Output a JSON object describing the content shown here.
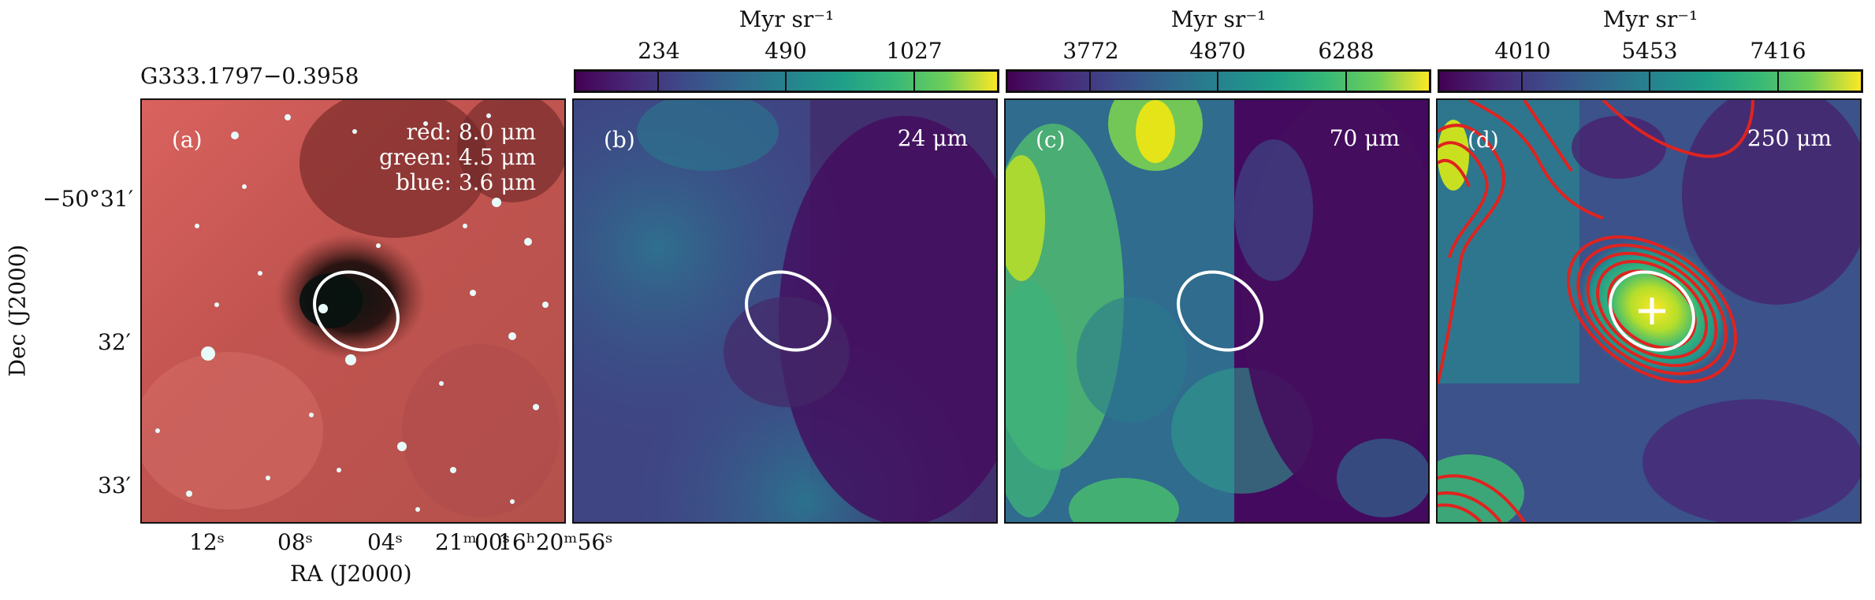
{
  "source_name": "G333.1797−0.3958",
  "colorbar_unit": "Myr sr⁻¹",
  "panels": [
    {
      "id": "a",
      "label": "(a)",
      "legend": [
        "red: 8.0 μm",
        "green: 4.5 μm",
        "blue: 3.6 μm"
      ]
    },
    {
      "id": "b",
      "label": "(b)",
      "band": "24 μm",
      "colorbar_ticks": [
        "234",
        "490",
        "1027"
      ]
    },
    {
      "id": "c",
      "label": "(c)",
      "band": "70 μm",
      "colorbar_ticks": [
        "3772",
        "4870",
        "6288"
      ]
    },
    {
      "id": "d",
      "label": "(d)",
      "band": "250 μm",
      "colorbar_ticks": [
        "4010",
        "5453",
        "7416"
      ]
    }
  ],
  "y_axis": {
    "label": "Dec (J2000)",
    "ticks": [
      "−50°31′",
      "32′",
      "33′"
    ]
  },
  "x_axis": {
    "label": "RA (J2000)",
    "ticks": [
      "12ˢ",
      "08ˢ",
      "04ˢ",
      "21ᵐ",
      "00ˢ",
      "16ʰ20ᵐ56ˢ"
    ]
  },
  "colors": {
    "ellipse": "#ffffff",
    "contour": "#e0231f",
    "marker": "#ffffff",
    "viridis_low": "#440154",
    "viridis_high": "#fde725"
  }
}
